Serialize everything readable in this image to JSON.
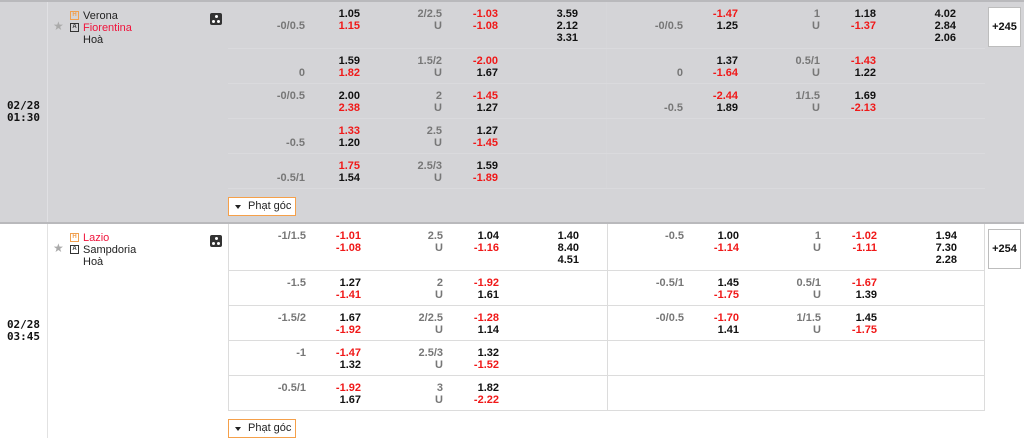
{
  "colors": {
    "favorite_red": "#f01818",
    "corner_border": "#f5a04a",
    "row_bg_highlight": "#d4d4d7"
  },
  "matches": [
    {
      "date": "02/28",
      "time": "01:30",
      "home": "Verona",
      "away": "Fiorentina",
      "draw": "Hoà",
      "favorite": "away",
      "home_badge": "H",
      "away_badge": "A",
      "more": "+245",
      "corner_label": "Phạt góc",
      "rows": [
        {
          "ft": {
            "hdp_line": "-0/0.5",
            "hdp_line_on": "away",
            "hdp": [
              [
                "1.05",
                0
              ],
              [
                "1.15",
                1
              ]
            ],
            "ou_line": "2/2.5",
            "ou_under": "U",
            "ou": [
              [
                "-1.03",
                1
              ],
              [
                "-1.08",
                1
              ]
            ],
            "x12": [
              "3.59",
              "2.12",
              "3.31"
            ]
          },
          "ht": {
            "hdp_line": "-0/0.5",
            "hdp_line_on": "away",
            "hdp": [
              [
                "-1.47",
                1
              ],
              [
                "1.25",
                0
              ]
            ],
            "ou_line": "1",
            "ou_under": "U",
            "ou": [
              [
                "1.18",
                0
              ],
              [
                "-1.37",
                1
              ]
            ],
            "x12": [
              "4.02",
              "2.84",
              "2.06"
            ]
          }
        },
        {
          "ft": {
            "hdp_line": "0",
            "hdp_line_on": "away",
            "hdp": [
              [
                "1.59",
                0
              ],
              [
                "1.82",
                1
              ]
            ],
            "ou_line": "1.5/2",
            "ou_under": "U",
            "ou": [
              [
                "-2.00",
                1
              ],
              [
                "1.67",
                0
              ]
            ]
          },
          "ht": {
            "hdp_line": "0",
            "hdp_line_on": "away",
            "hdp": [
              [
                "1.37",
                0
              ],
              [
                "-1.64",
                1
              ]
            ],
            "ou_line": "0.5/1",
            "ou_under": "U",
            "ou": [
              [
                "-1.43",
                1
              ],
              [
                "1.22",
                0
              ]
            ]
          }
        },
        {
          "ft": {
            "hdp_line": "-0/0.5",
            "hdp_line_on": "home",
            "hdp": [
              [
                "2.00",
                0
              ],
              [
                "2.38",
                1
              ]
            ],
            "ou_line": "2",
            "ou_under": "U",
            "ou": [
              [
                "-1.45",
                1
              ],
              [
                "1.27",
                0
              ]
            ]
          },
          "ht": {
            "hdp_line": "-0.5",
            "hdp_line_on": "away",
            "hdp": [
              [
                "-2.44",
                1
              ],
              [
                "1.89",
                0
              ]
            ],
            "ou_line": "1/1.5",
            "ou_under": "U",
            "ou": [
              [
                "1.69",
                0
              ],
              [
                "-2.13",
                1
              ]
            ]
          }
        },
        {
          "ft": {
            "hdp_line": "-0.5",
            "hdp_line_on": "away",
            "hdp": [
              [
                "1.33",
                1
              ],
              [
                "1.20",
                0
              ]
            ],
            "ou_line": "2.5",
            "ou_under": "U",
            "ou": [
              [
                "1.27",
                0
              ],
              [
                "-1.45",
                1
              ]
            ]
          }
        },
        {
          "ft": {
            "hdp_line": "-0.5/1",
            "hdp_line_on": "away",
            "hdp": [
              [
                "1.75",
                1
              ],
              [
                "1.54",
                0
              ]
            ],
            "ou_line": "2.5/3",
            "ou_under": "U",
            "ou": [
              [
                "1.59",
                0
              ],
              [
                "-1.89",
                1
              ]
            ]
          }
        }
      ]
    },
    {
      "date": "02/28",
      "time": "03:45",
      "home": "Lazio",
      "away": "Sampdoria",
      "draw": "Hoà",
      "favorite": "home",
      "home_badge": "H",
      "away_badge": "A",
      "more": "+254",
      "corner_label": "Phạt góc",
      "rows": [
        {
          "ft": {
            "hdp_line": "-1/1.5",
            "hdp_line_on": "home",
            "hdp": [
              [
                "-1.01",
                1
              ],
              [
                "-1.08",
                1
              ]
            ],
            "ou_line": "2.5",
            "ou_under": "U",
            "ou": [
              [
                "1.04",
                0
              ],
              [
                "-1.16",
                1
              ]
            ],
            "x12": [
              "1.40",
              "8.40",
              "4.51"
            ]
          },
          "ht": {
            "hdp_line": "-0.5",
            "hdp_line_on": "home",
            "hdp": [
              [
                "1.00",
                0
              ],
              [
                "-1.14",
                1
              ]
            ],
            "ou_line": "1",
            "ou_under": "U",
            "ou": [
              [
                "-1.02",
                1
              ],
              [
                "-1.11",
                1
              ]
            ],
            "x12": [
              "1.94",
              "7.30",
              "2.28"
            ]
          }
        },
        {
          "ft": {
            "hdp_line": "-1.5",
            "hdp_line_on": "home",
            "hdp": [
              [
                "1.27",
                0
              ],
              [
                "-1.41",
                1
              ]
            ],
            "ou_line": "2",
            "ou_under": "U",
            "ou": [
              [
                "-1.92",
                1
              ],
              [
                "1.61",
                0
              ]
            ]
          },
          "ht": {
            "hdp_line": "-0.5/1",
            "hdp_line_on": "home",
            "hdp": [
              [
                "1.45",
                0
              ],
              [
                "-1.75",
                1
              ]
            ],
            "ou_line": "0.5/1",
            "ou_under": "U",
            "ou": [
              [
                "-1.67",
                1
              ],
              [
                "1.39",
                0
              ]
            ]
          }
        },
        {
          "ft": {
            "hdp_line": "-1.5/2",
            "hdp_line_on": "home",
            "hdp": [
              [
                "1.67",
                0
              ],
              [
                "-1.92",
                1
              ]
            ],
            "ou_line": "2/2.5",
            "ou_under": "U",
            "ou": [
              [
                "-1.28",
                1
              ],
              [
                "1.14",
                0
              ]
            ]
          },
          "ht": {
            "hdp_line": "-0/0.5",
            "hdp_line_on": "home",
            "hdp": [
              [
                "-1.70",
                1
              ],
              [
                "1.41",
                0
              ]
            ],
            "ou_line": "1/1.5",
            "ou_under": "U",
            "ou": [
              [
                "1.45",
                0
              ],
              [
                "-1.75",
                1
              ]
            ]
          }
        },
        {
          "ft": {
            "hdp_line": "-1",
            "hdp_line_on": "home",
            "hdp": [
              [
                "-1.47",
                1
              ],
              [
                "1.32",
                0
              ]
            ],
            "ou_line": "2.5/3",
            "ou_under": "U",
            "ou": [
              [
                "1.32",
                0
              ],
              [
                "-1.52",
                1
              ]
            ]
          }
        },
        {
          "ft": {
            "hdp_line": "-0.5/1",
            "hdp_line_on": "home",
            "hdp": [
              [
                "-1.92",
                1
              ],
              [
                "1.67",
                0
              ]
            ],
            "ou_line": "3",
            "ou_under": "U",
            "ou": [
              [
                "1.82",
                0
              ],
              [
                "-2.22",
                1
              ]
            ]
          }
        }
      ]
    }
  ]
}
